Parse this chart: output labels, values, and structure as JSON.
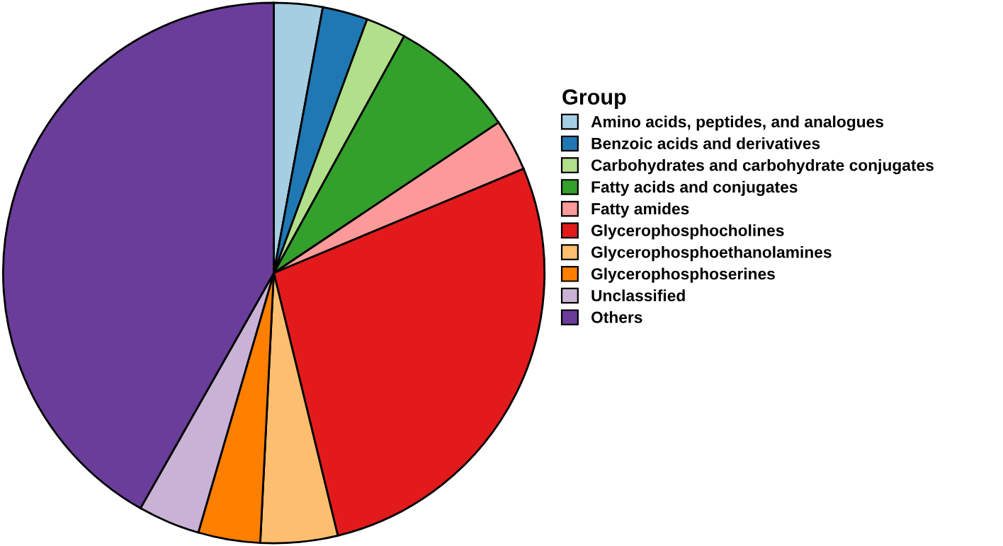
{
  "chart_data": {
    "type": "pie",
    "legend_title": "Group",
    "legend": "right",
    "categories": [
      "Amino acids, peptides, and analogues",
      "Benzoic acids and derivatives",
      "Carbohydrates and carbohydrate conjugates",
      "Fatty acids and conjugates",
      "Fatty amides",
      "Glycerophosphocholines",
      "Glycerophosphoethanolamines",
      "Glycerophosphoserines",
      "Unclassified",
      "Others"
    ],
    "values": [
      2.9,
      2.7,
      2.4,
      7.6,
      3.1,
      27.5,
      4.6,
      3.7,
      3.7,
      41.8
    ],
    "colors": [
      "#a6cee3",
      "#1f78b4",
      "#b2df8a",
      "#33a02c",
      "#fb9a99",
      "#e31a1c",
      "#fdbf6f",
      "#ff7f00",
      "#cab2d6",
      "#6a3d9a"
    ]
  }
}
